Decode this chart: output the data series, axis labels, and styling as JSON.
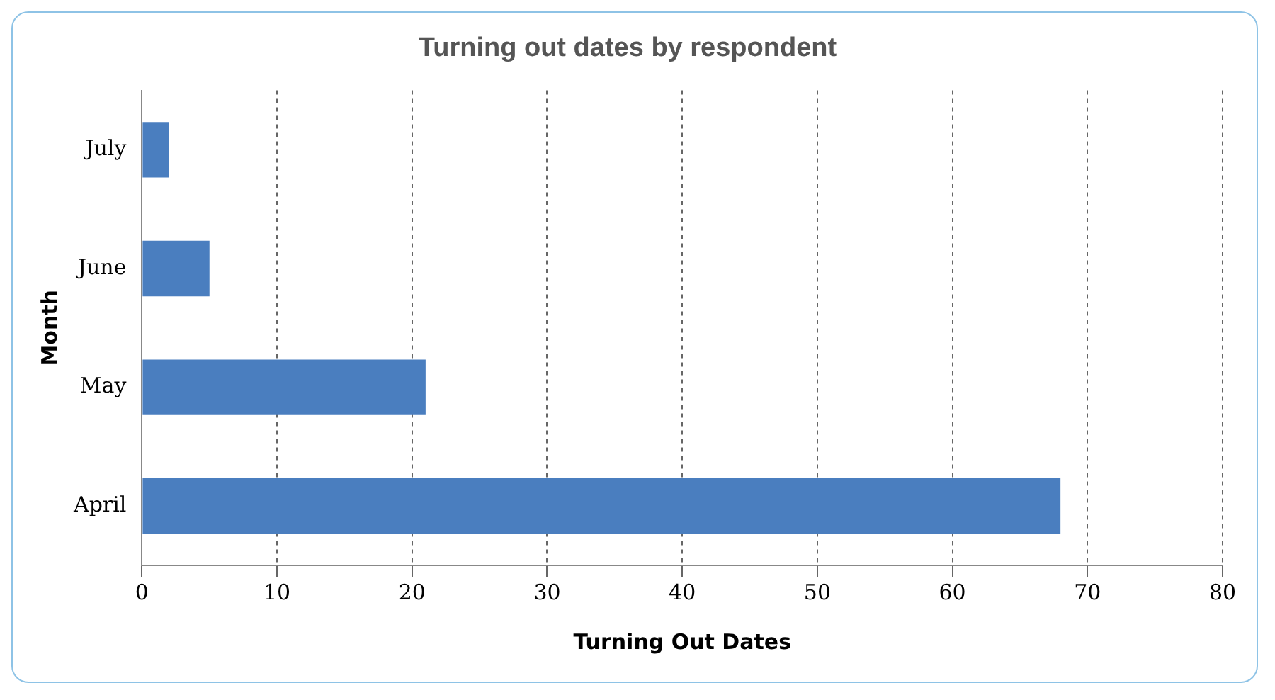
{
  "chart_data": {
    "type": "bar",
    "orientation": "horizontal",
    "title": "Turning out dates by respondent",
    "xlabel": "Turning Out Dates",
    "ylabel": "Month",
    "categories": [
      "July",
      "June",
      "May",
      "April"
    ],
    "values": [
      2,
      5,
      21,
      68
    ],
    "color": "#4a7ebf",
    "xlim": [
      0,
      80
    ],
    "xticks": [
      0,
      10,
      20,
      30,
      40,
      50,
      60,
      70,
      80
    ],
    "grid": "x",
    "legend": false
  }
}
